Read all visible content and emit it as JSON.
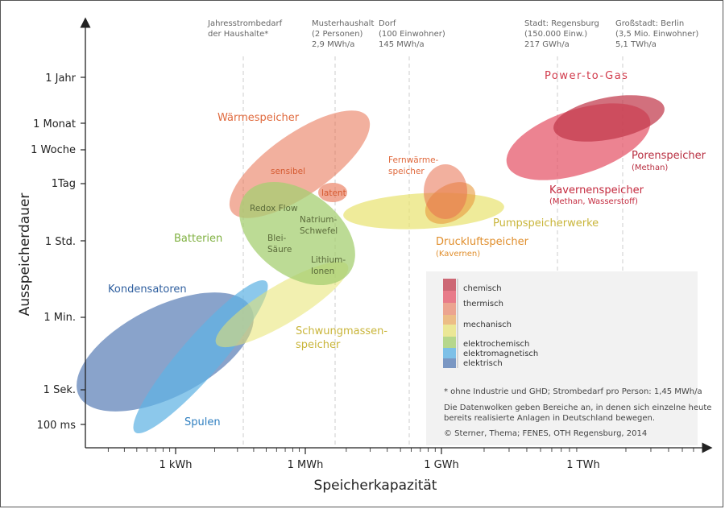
{
  "chart_data": {
    "type": "ellipse-scatter",
    "xlabel": "Speicherkapazität",
    "ylabel": "Ausspeicherdauer",
    "x_ticks": [
      "1 kWh",
      "1 MWh",
      "1 GWh",
      "1 TWh"
    ],
    "y_ticks": [
      "100 ms",
      "1 Sek.",
      "1 Min.",
      "1 Std.",
      "1Tag",
      "1 Woche",
      "1 Monat",
      "1 Jahr"
    ],
    "reference_lines": [
      {
        "lines": [
          "Jahresstrombedarf",
          "der Haushalte*"
        ]
      },
      {
        "lines": [
          "Musterhaushalt",
          "(2 Personen)",
          "2,9 MWh/a"
        ]
      },
      {
        "lines": [
          "Dorf",
          "(100 Einwohner)",
          "145 MWh/a"
        ]
      },
      {
        "lines": [
          "Stadt: Regensburg",
          "(150.000 Einw.)",
          "217 GWh/a"
        ]
      },
      {
        "lines": [
          "Großstadt: Berlin",
          "(3,5 Mio. Einwohner)",
          "5,1 TWh/a"
        ]
      }
    ],
    "series": [
      {
        "name": "Power-to-Gas",
        "category": "chemisch"
      },
      {
        "name": "Porenspeicher",
        "note": "(Methan)",
        "category": "chemisch"
      },
      {
        "name": "Kavernenspeicher",
        "note": "(Methan, Wasserstoff)",
        "category": "chemisch"
      },
      {
        "name": "Wärmespeicher",
        "category": "thermisch"
      },
      {
        "name": "sensibel",
        "category": "thermisch"
      },
      {
        "name": "latent",
        "category": "thermisch"
      },
      {
        "name": "Fernwärme-speicher",
        "category": "thermisch"
      },
      {
        "name": "Druckluftspeicher",
        "note": "(Kavernen)",
        "category": "mechanisch"
      },
      {
        "name": "Pumpspeicherwerke",
        "category": "mechanisch"
      },
      {
        "name": "Schwungmassen-speicher",
        "category": "mechanisch"
      },
      {
        "name": "Batterien",
        "category": "elektrochemisch"
      },
      {
        "name": "Redox Flow",
        "category": "elektrochemisch"
      },
      {
        "name": "Natrium-Schwefel",
        "category": "elektrochemisch"
      },
      {
        "name": "Blei-Säure",
        "category": "elektrochemisch"
      },
      {
        "name": "Lithium-Ionen",
        "category": "elektrochemisch"
      },
      {
        "name": "Kondensatoren",
        "category": "elektrisch"
      },
      {
        "name": "Spulen",
        "category": "elektromagnetisch"
      }
    ],
    "legend": [
      {
        "label": "chemisch",
        "color": "#c0394b"
      },
      {
        "label": "thermisch",
        "color": "#e8704e"
      },
      {
        "label": "mechanisch",
        "color": "#e3dc6a"
      },
      {
        "label": "elektrochemisch",
        "color": "#a6cf72"
      },
      {
        "label": "elektromagnetisch",
        "color": "#5fb3e3"
      },
      {
        "label": "elektrisch",
        "color": "#5b7fb7"
      }
    ],
    "notes": [
      "* ohne Industrie und GHD; Strombedarf pro Person: 1,45 MWh/a",
      "Die Datenwolken geben Bereiche an, in denen sich einzelne heute",
      "bereits realisierte Anlagen in Deutschland bewegen.",
      "© Sterner, Thema; FENES, OTH Regensburg, 2014"
    ]
  }
}
